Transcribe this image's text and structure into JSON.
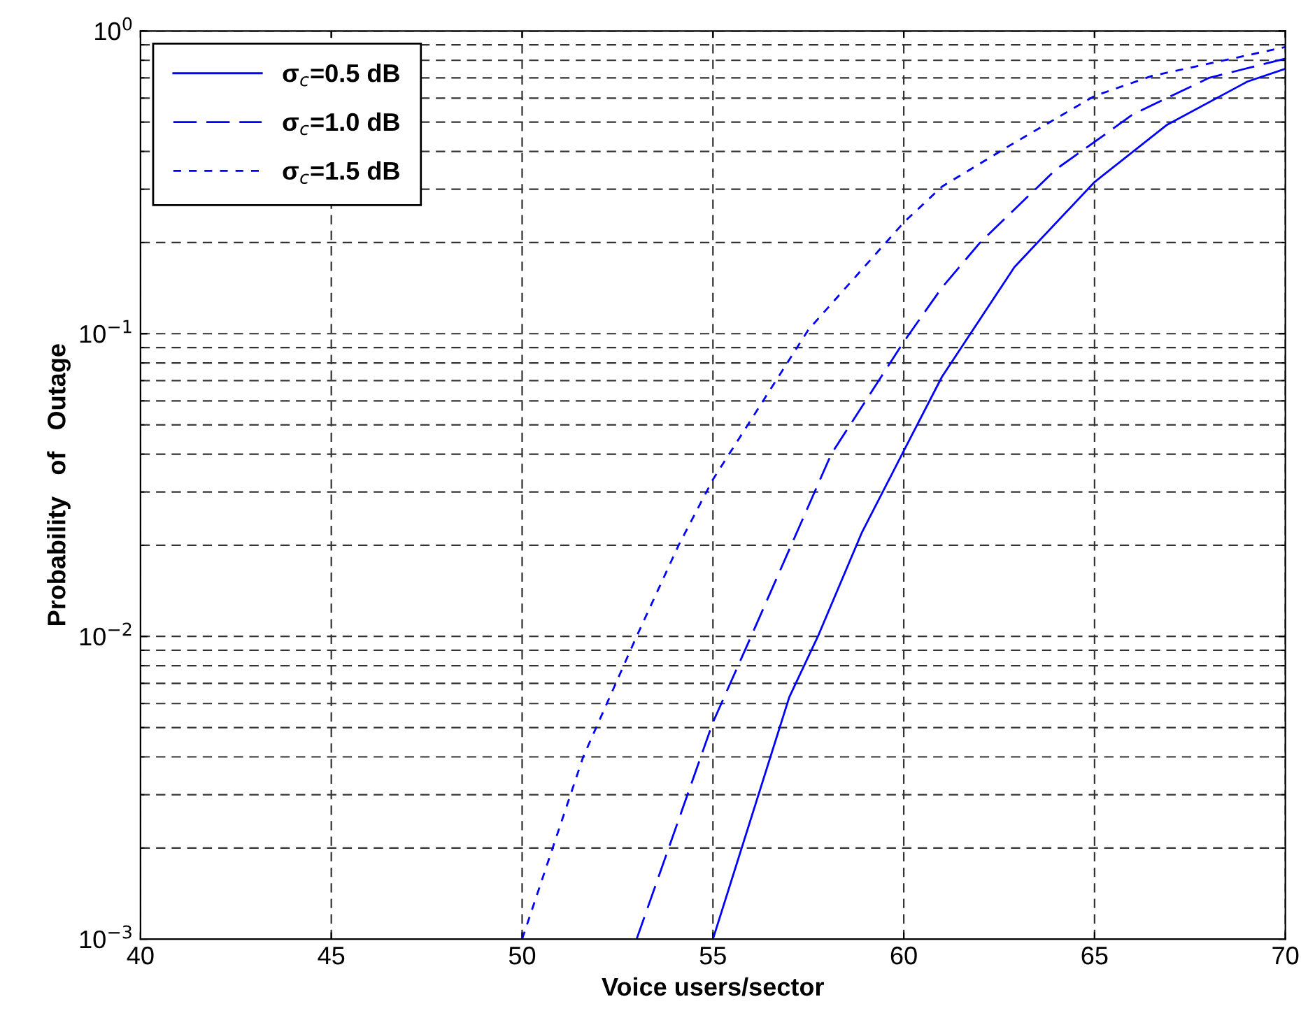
{
  "chart_data": {
    "type": "line",
    "xlabel": "Voice users/sector",
    "ylabel": "Probability   of   Outage",
    "log": "y",
    "grid": true,
    "legend": "top left",
    "xlim": [
      40,
      70
    ],
    "xticks": [
      40,
      45,
      50,
      55,
      60,
      65,
      70
    ],
    "ylim": [
      0.001,
      1
    ],
    "yticks": [
      {
        "value": 0.001,
        "label": "10$^{−3}$"
      },
      {
        "value": 0.01,
        "label": "10$^{−2}$"
      },
      {
        "value": 0.1,
        "label": "10$^{−1}$"
      },
      {
        "value": 1,
        "label": "10$^{0}$"
      }
    ],
    "series": [
      {
        "name": "σ$_{c}$=0.5 dB",
        "color": "#0000ff",
        "line_style": "solid",
        "x": [
          55,
          57,
          57.75,
          58.9,
          60,
          61,
          62.9,
          65,
          66.9,
          69,
          70
        ],
        "values": [
          0.001,
          0.0063,
          0.01,
          0.022,
          0.041,
          0.072,
          0.166,
          0.317,
          0.49,
          0.68,
          0.75
        ]
      },
      {
        "name": "σ$_{c}$=1.0 dB",
        "color": "#0000ff",
        "line_style": "dashed",
        "x": [
          53,
          55,
          56,
          58.1,
          60,
          61,
          62,
          64,
          65,
          66,
          68,
          70
        ],
        "values": [
          0.001,
          0.0052,
          0.01,
          0.04,
          0.094,
          0.142,
          0.2,
          0.35,
          0.43,
          0.53,
          0.7,
          0.81
        ]
      },
      {
        "name": "σ$_{c}$=1.5 dB",
        "color": "#0000ff",
        "line_style": "dotted",
        "x": [
          50,
          51.6,
          53,
          54.1,
          55,
          56,
          57.5,
          60,
          61,
          62.8,
          65,
          66.5,
          68.2,
          70
        ],
        "values": [
          0.001,
          0.004,
          0.01,
          0.02,
          0.033,
          0.052,
          0.103,
          0.233,
          0.306,
          0.42,
          0.61,
          0.71,
          0.79,
          0.885
        ]
      }
    ]
  }
}
